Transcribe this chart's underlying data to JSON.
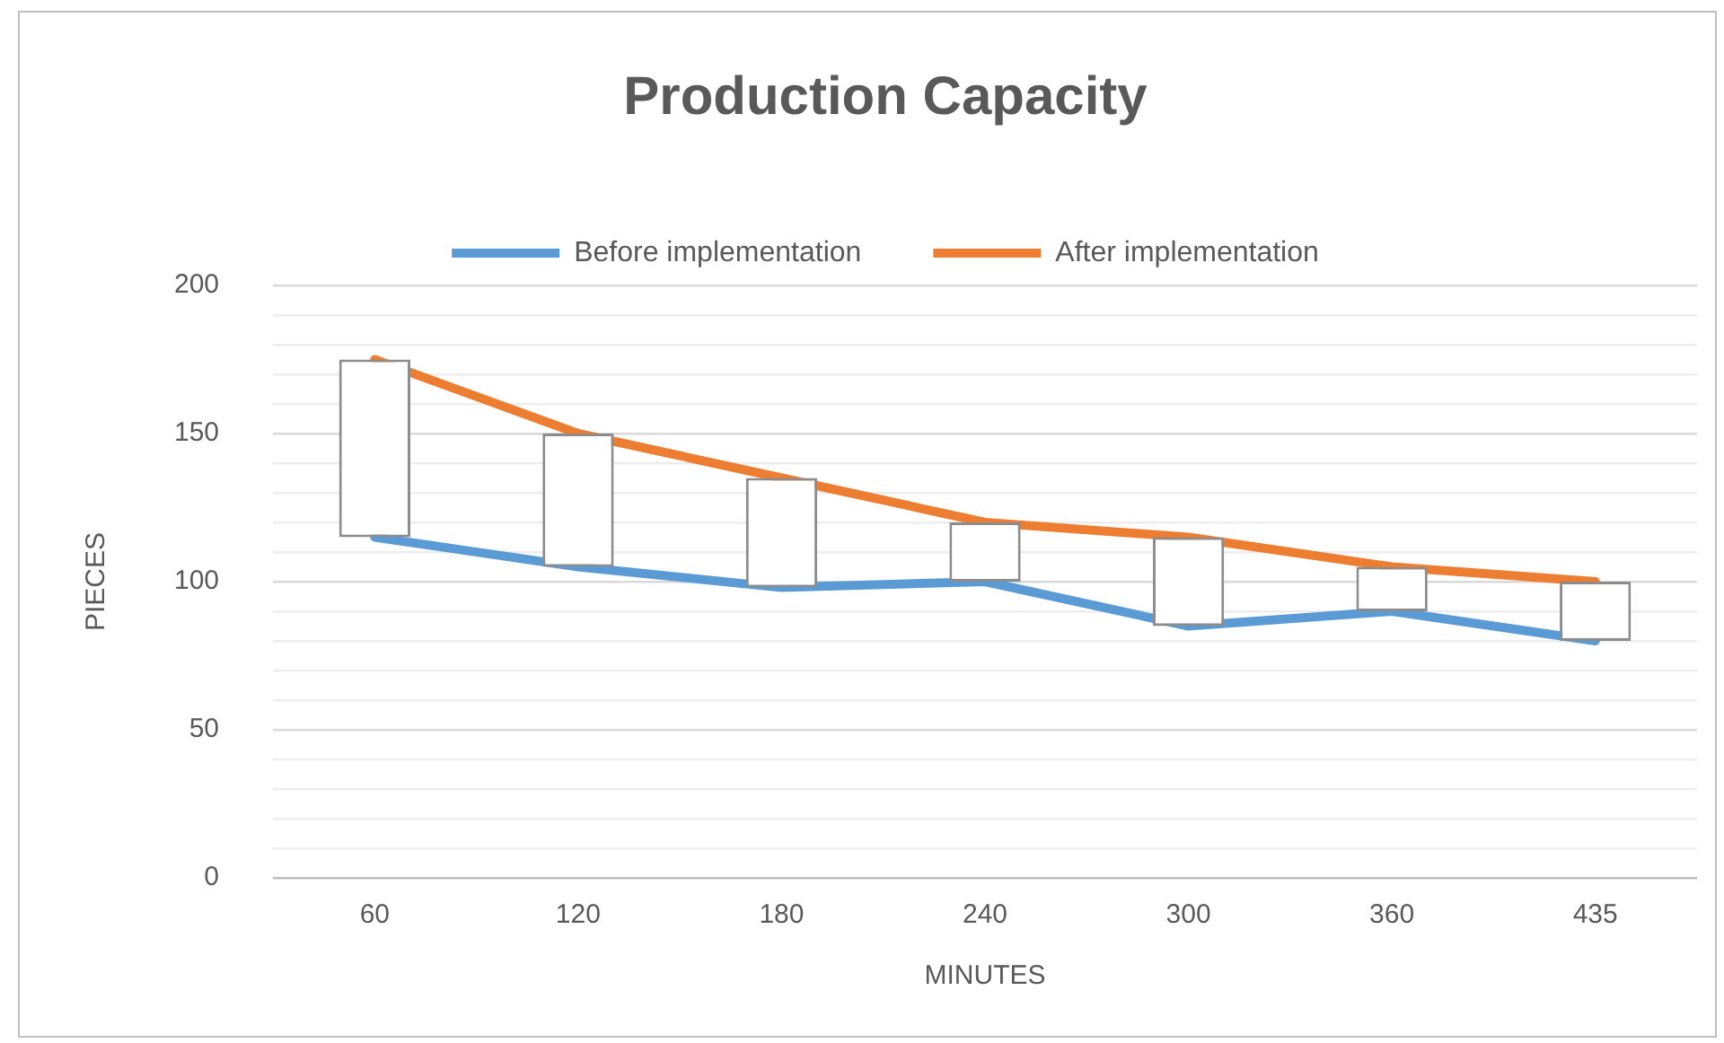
{
  "chart_data": {
    "type": "line",
    "title": "Production Capacity",
    "xlabel": "MINUTES",
    "ylabel": "PIECES",
    "categories": [
      "60",
      "120",
      "180",
      "240",
      "300",
      "360",
      "435"
    ],
    "series": [
      {
        "name": "Before implementation",
        "color": "#5b9bd5",
        "values": [
          115,
          105,
          98,
          100,
          85,
          90,
          80
        ]
      },
      {
        "name": "After implementation",
        "color": "#ed7d31",
        "values": [
          175,
          150,
          135,
          120,
          115,
          105,
          100
        ]
      },
      {
        "type": "bar",
        "color": "#ffffff",
        "base": [
          115,
          105,
          98,
          100,
          85,
          90,
          80
        ],
        "values": [
          60,
          45,
          37,
          20,
          30,
          15,
          20
        ]
      }
    ],
    "ylim": [
      0,
      200
    ],
    "yticks": [
      0,
      {
        "value": 10,
        "label": null
      },
      {
        "value": 20,
        "label": null
      },
      {
        "value": 30,
        "label": null
      },
      {
        "value": 40,
        "label": null
      },
      50,
      {
        "value": 60,
        "label": null
      },
      {
        "value": 70,
        "label": null
      },
      {
        "value": 80,
        "label": null
      },
      {
        "value": 90,
        "label": null
      },
      100,
      {
        "value": 110,
        "label": null
      },
      {
        "value": 120,
        "label": null
      },
      {
        "value": 130,
        "label": null
      },
      {
        "value": 140,
        "label": null
      },
      150,
      {
        "value": 160,
        "label": null
      },
      {
        "value": 170,
        "label": null
      },
      {
        "value": 180,
        "label": null
      },
      {
        "value": 190,
        "label": null
      },
      200
    ],
    "grid": "y",
    "legend": "top",
    "marker": "none",
    "line_style": "solid"
  }
}
